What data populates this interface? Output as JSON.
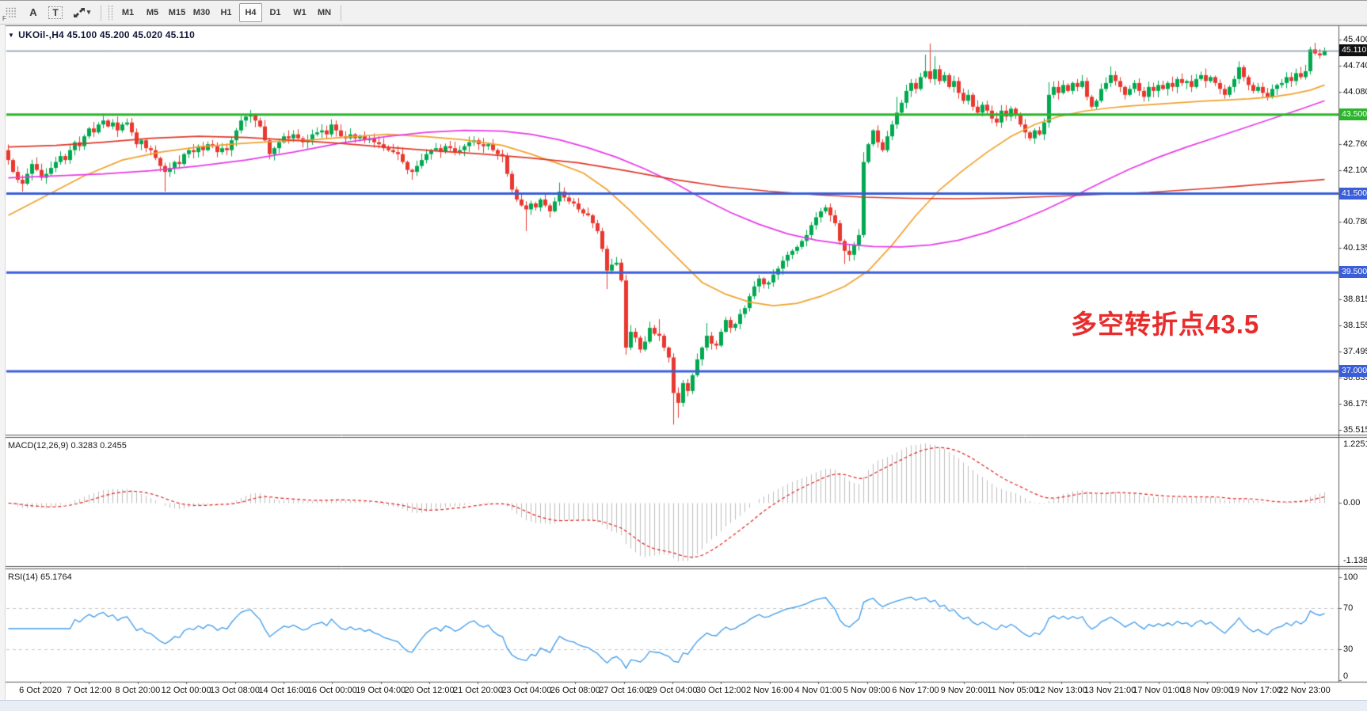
{
  "toolbar": {
    "drag_handle_label": "F",
    "letter_tool": "A",
    "text_tool": "T",
    "caret": "▾",
    "timeframes": [
      "M1",
      "M5",
      "M15",
      "M30",
      "H1",
      "H4",
      "D1",
      "W1",
      "MN"
    ],
    "active_timeframe": "H4"
  },
  "chart_header": {
    "dropdown_glyph": "▼",
    "title": "UKOil-,H4  45.100 45.200 45.020 45.110"
  },
  "annotation": {
    "text": "多空转折点43.5",
    "color": "#e82c2c"
  },
  "indicators": {
    "macd": {
      "label": "MACD(12,26,9) 0.3283 0.2455",
      "fast": 12,
      "slow": 26,
      "signal": 9,
      "scale_max": "1.2251",
      "scale_min": "-1.1383",
      "zero_label": "0.00"
    },
    "rsi": {
      "label": "RSI(14) 65.1764",
      "period": 14,
      "scale_labels": [
        "100",
        "70",
        "30",
        "0"
      ],
      "level_lines": [
        70,
        30
      ]
    }
  },
  "colors": {
    "up": "#00a94f",
    "down": "#e8382f",
    "ma_fast": "#f0a22e",
    "ma_mid": "#e63be6",
    "ma_slow": "#dd3a2a",
    "green_line": "#2db32d",
    "blue_line": "#3a5ed8",
    "price_line": "#8796a8",
    "black_box": "#111111",
    "macd_hist": "#bdbdbd",
    "macd_signal": "#e02020",
    "rsi_line": "#3e9bea",
    "level_dash": "#c6c6c6",
    "frame": "#5a5a5a",
    "axis_text": "#111111"
  },
  "chart_data": {
    "type": "candlestick",
    "symbol": "UKOil-",
    "timeframe": "H4",
    "title": "UKOil-,H4",
    "current_bar": {
      "open": "45.100",
      "high": "45.200",
      "low": "45.020",
      "close": "45.110"
    },
    "ylim": [
      35.39,
      45.74
    ],
    "price_ticks": [
      "45.400",
      "44.740",
      "44.080",
      "43.420",
      "42.760",
      "42.100",
      "41.440",
      "40.780",
      "40.135",
      "38.815",
      "38.155",
      "37.495",
      "36.835",
      "36.175",
      "35.515"
    ],
    "levels": [
      {
        "price": 45.11,
        "label": "45.110",
        "line": "price_line",
        "box": "black_box",
        "width": 1
      },
      {
        "price": 43.5,
        "label": "43.500",
        "line": "green_line",
        "box": "green_line",
        "width": 3
      },
      {
        "price": 41.5,
        "label": "41.500",
        "line": "blue_line",
        "box": "blue_line",
        "width": 3
      },
      {
        "price": 39.5,
        "label": "39.500",
        "line": "blue_line",
        "box": "blue_line",
        "width": 3
      },
      {
        "price": 37.0,
        "label": "37.000",
        "line": "blue_line",
        "box": "blue_line",
        "width": 3
      }
    ],
    "time_labels": [
      "6 Oct 2020",
      "7 Oct 12:00",
      "8 Oct 20:00",
      "12 Oct 00:00",
      "13 Oct 08:00",
      "14 Oct 16:00",
      "16 Oct 00:00",
      "19 Oct 04:00",
      "20 Oct 12:00",
      "21 Oct 20:00",
      "23 Oct 04:00",
      "26 Oct 08:00",
      "27 Oct 16:00",
      "29 Oct 04:00",
      "30 Oct 12:00",
      "2 Nov 16:00",
      "4 Nov 01:00",
      "5 Nov 09:00",
      "6 Nov 17:00",
      "9 Nov 20:00",
      "11 Nov 05:00",
      "12 Nov 13:00",
      "13 Nov 21:00",
      "17 Nov 01:00",
      "18 Nov 09:00",
      "19 Nov 17:00",
      "22 Nov 23:00"
    ],
    "first_open": 42.6,
    "closes": [
      42.35,
      42.05,
      41.85,
      41.75,
      42.0,
      42.25,
      42.1,
      41.9,
      42.0,
      42.15,
      42.3,
      42.45,
      42.35,
      42.6,
      42.8,
      42.7,
      42.95,
      43.15,
      43.05,
      43.25,
      43.35,
      43.2,
      43.3,
      43.1,
      43.25,
      43.3,
      43.05,
      42.75,
      42.85,
      42.65,
      42.6,
      42.4,
      42.2,
      42.05,
      42.15,
      42.3,
      42.25,
      42.5,
      42.6,
      42.55,
      42.7,
      42.6,
      42.75,
      42.7,
      42.55,
      42.65,
      42.6,
      42.85,
      43.1,
      43.35,
      43.45,
      43.5,
      43.35,
      43.2,
      42.85,
      42.5,
      42.65,
      42.8,
      42.95,
      42.9,
      43.0,
      42.9,
      42.8,
      42.85,
      43.0,
      43.05,
      43.1,
      43.0,
      43.25,
      43.1,
      42.95,
      42.9,
      43.0,
      42.9,
      42.95,
      42.85,
      42.9,
      42.8,
      42.75,
      42.65,
      42.6,
      42.55,
      42.5,
      42.3,
      42.1,
      42.05,
      42.2,
      42.35,
      42.5,
      42.6,
      42.65,
      42.55,
      42.7,
      42.65,
      42.55,
      42.6,
      42.7,
      42.8,
      42.85,
      42.75,
      42.7,
      42.75,
      42.6,
      42.5,
      42.45,
      42.0,
      41.6,
      41.35,
      41.2,
      41.1,
      41.25,
      41.15,
      41.35,
      41.2,
      41.05,
      41.3,
      41.55,
      41.4,
      41.3,
      41.25,
      41.1,
      41.0,
      40.95,
      40.75,
      40.55,
      40.1,
      39.55,
      39.7,
      39.75,
      39.3,
      37.6,
      38.0,
      37.85,
      37.55,
      37.75,
      38.1,
      37.95,
      37.9,
      37.6,
      37.35,
      36.45,
      36.2,
      36.7,
      36.5,
      36.9,
      37.3,
      37.6,
      37.9,
      37.7,
      37.65,
      38.0,
      38.3,
      38.1,
      38.2,
      38.45,
      38.6,
      38.9,
      39.15,
      39.35,
      39.2,
      39.25,
      39.45,
      39.6,
      39.8,
      39.95,
      40.05,
      40.15,
      40.3,
      40.45,
      40.7,
      40.9,
      41.05,
      41.15,
      40.95,
      40.75,
      40.3,
      40.05,
      39.95,
      40.2,
      40.45,
      42.3,
      42.75,
      43.1,
      42.8,
      42.6,
      42.95,
      43.25,
      43.55,
      43.8,
      44.1,
      44.3,
      44.15,
      44.45,
      44.6,
      44.4,
      44.65,
      44.35,
      44.5,
      44.2,
      44.35,
      44.05,
      43.85,
      44.0,
      43.7,
      43.55,
      43.75,
      43.6,
      43.4,
      43.3,
      43.6,
      43.45,
      43.65,
      43.5,
      43.25,
      43.05,
      42.9,
      43.1,
      43.0,
      43.3,
      44.0,
      44.2,
      44.05,
      44.25,
      44.1,
      44.3,
      44.2,
      44.35,
      43.95,
      43.7,
      43.85,
      44.15,
      44.3,
      44.5,
      44.35,
      44.2,
      44.0,
      44.15,
      44.3,
      44.1,
      43.95,
      44.2,
      44.1,
      44.25,
      44.15,
      44.3,
      44.2,
      44.4,
      44.3,
      44.35,
      44.2,
      44.4,
      44.5,
      44.35,
      44.45,
      44.3,
      44.15,
      44.0,
      44.2,
      44.4,
      44.7,
      44.45,
      44.25,
      44.1,
      44.2,
      44.05,
      43.95,
      44.15,
      44.25,
      44.3,
      44.45,
      44.35,
      44.55,
      44.45,
      44.6,
      45.15,
      45.05,
      45.0,
      45.11
    ],
    "wick_overrides": {
      "3": {
        "l": 41.55
      },
      "20": {
        "h": 43.52
      },
      "33": {
        "l": 41.55
      },
      "51": {
        "h": 43.62
      },
      "68": {
        "h": 43.38
      },
      "85": {
        "l": 41.85
      },
      "109": {
        "l": 40.55
      },
      "116": {
        "h": 41.78
      },
      "126": {
        "l": 39.08
      },
      "129": {
        "h": 39.85
      },
      "130": {
        "l": 37.42
      },
      "137": {
        "h": 38.32
      },
      "140": {
        "l": 35.65
      },
      "141": {
        "l": 35.82
      },
      "147": {
        "h": 38.22
      },
      "176": {
        "l": 39.72
      },
      "180": {
        "h": 42.55
      },
      "187": {
        "h": 43.95
      },
      "193": {
        "h": 45.02
      },
      "194": {
        "h": 45.3
      },
      "195": {
        "h": 44.98
      },
      "219": {
        "h": 44.32
      },
      "232": {
        "h": 44.72
      },
      "259": {
        "h": 44.85
      },
      "274": {
        "h": 45.22
      },
      "276": {
        "l": 44.92
      },
      "277": {
        "h": 45.2,
        "l": 45.02
      }
    },
    "moving_averages": [
      {
        "name": "ma-fast-orange",
        "color_key": "ma_fast",
        "points": [
          [
            0,
            40.95
          ],
          [
            8,
            41.45
          ],
          [
            16,
            41.95
          ],
          [
            24,
            42.35
          ],
          [
            32,
            42.55
          ],
          [
            40,
            42.68
          ],
          [
            48,
            42.76
          ],
          [
            56,
            42.82
          ],
          [
            64,
            42.86
          ],
          [
            72,
            42.94
          ],
          [
            80,
            43.0
          ],
          [
            88,
            42.94
          ],
          [
            96,
            42.86
          ],
          [
            104,
            42.72
          ],
          [
            110,
            42.5
          ],
          [
            116,
            42.25
          ],
          [
            121,
            42.02
          ],
          [
            126,
            41.6
          ],
          [
            131,
            41.05
          ],
          [
            136,
            40.45
          ],
          [
            141,
            39.85
          ],
          [
            146,
            39.25
          ],
          [
            151,
            38.95
          ],
          [
            156,
            38.75
          ],
          [
            161,
            38.66
          ],
          [
            166,
            38.72
          ],
          [
            171,
            38.9
          ],
          [
            176,
            39.15
          ],
          [
            181,
            39.55
          ],
          [
            186,
            40.2
          ],
          [
            191,
            40.95
          ],
          [
            196,
            41.6
          ],
          [
            201,
            42.1
          ],
          [
            206,
            42.55
          ],
          [
            211,
            42.95
          ],
          [
            216,
            43.25
          ],
          [
            221,
            43.45
          ],
          [
            226,
            43.58
          ],
          [
            231,
            43.66
          ],
          [
            236,
            43.72
          ],
          [
            241,
            43.76
          ],
          [
            246,
            43.8
          ],
          [
            251,
            43.84
          ],
          [
            256,
            43.87
          ],
          [
            261,
            43.9
          ],
          [
            266,
            43.95
          ],
          [
            270,
            44.02
          ],
          [
            274,
            44.12
          ],
          [
            277,
            44.25
          ]
        ]
      },
      {
        "name": "ma-mid-magenta",
        "color_key": "ma_mid",
        "points": [
          [
            0,
            41.9
          ],
          [
            10,
            41.95
          ],
          [
            20,
            42.0
          ],
          [
            30,
            42.08
          ],
          [
            40,
            42.2
          ],
          [
            50,
            42.35
          ],
          [
            60,
            42.55
          ],
          [
            70,
            42.78
          ],
          [
            80,
            42.95
          ],
          [
            88,
            43.05
          ],
          [
            96,
            43.1
          ],
          [
            104,
            43.08
          ],
          [
            110,
            43.0
          ],
          [
            116,
            42.86
          ],
          [
            122,
            42.66
          ],
          [
            128,
            42.42
          ],
          [
            134,
            42.12
          ],
          [
            140,
            41.78
          ],
          [
            146,
            41.38
          ],
          [
            152,
            41.02
          ],
          [
            158,
            40.72
          ],
          [
            164,
            40.48
          ],
          [
            170,
            40.32
          ],
          [
            176,
            40.22
          ],
          [
            182,
            40.16
          ],
          [
            188,
            40.15
          ],
          [
            194,
            40.2
          ],
          [
            200,
            40.32
          ],
          [
            206,
            40.52
          ],
          [
            212,
            40.78
          ],
          [
            218,
            41.08
          ],
          [
            224,
            41.42
          ],
          [
            230,
            41.78
          ],
          [
            236,
            42.12
          ],
          [
            242,
            42.42
          ],
          [
            248,
            42.68
          ],
          [
            254,
            42.92
          ],
          [
            260,
            43.16
          ],
          [
            266,
            43.4
          ],
          [
            272,
            43.64
          ],
          [
            277,
            43.85
          ]
        ]
      },
      {
        "name": "ma-slow-red",
        "color_key": "ma_slow",
        "points": [
          [
            0,
            42.68
          ],
          [
            10,
            42.72
          ],
          [
            20,
            42.8
          ],
          [
            30,
            42.9
          ],
          [
            40,
            42.95
          ],
          [
            50,
            42.92
          ],
          [
            60,
            42.85
          ],
          [
            70,
            42.77
          ],
          [
            80,
            42.67
          ],
          [
            90,
            42.58
          ],
          [
            100,
            42.5
          ],
          [
            110,
            42.4
          ],
          [
            120,
            42.28
          ],
          [
            130,
            42.08
          ],
          [
            140,
            41.86
          ],
          [
            150,
            41.68
          ],
          [
            160,
            41.56
          ],
          [
            170,
            41.47
          ],
          [
            180,
            41.41
          ],
          [
            190,
            41.38
          ],
          [
            200,
            41.37
          ],
          [
            210,
            41.39
          ],
          [
            220,
            41.43
          ],
          [
            230,
            41.48
          ],
          [
            240,
            41.53
          ],
          [
            250,
            41.61
          ],
          [
            258,
            41.68
          ],
          [
            266,
            41.76
          ],
          [
            272,
            41.81
          ],
          [
            277,
            41.86
          ]
        ]
      }
    ],
    "macd": {
      "fast": 12,
      "slow": 26,
      "signal": 9,
      "current": [
        0.3283,
        0.2455
      ],
      "scale": [
        1.2251,
        -1.1383
      ]
    },
    "rsi": {
      "period": 14,
      "current": 65.1764,
      "scale": [
        0,
        100
      ],
      "levels": [
        70,
        30
      ]
    }
  }
}
